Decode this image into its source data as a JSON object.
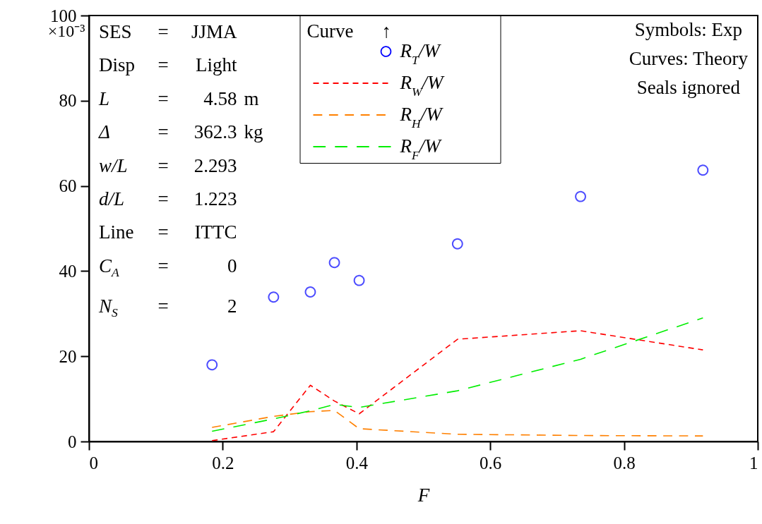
{
  "chart_data": {
    "type": "line",
    "xlabel": "F",
    "ylabel": "×10⁻³",
    "legend_title": "Curve",
    "annotations": [
      "↑",
      "SES = JJMA",
      "Disp = Light",
      "L = 4.58 m",
      "Δ = 362.3 kg",
      "w/L = 2.293",
      "d/L = 1.223",
      "Line = ITTC",
      "C$_{A}$ = 0",
      "N$_{S}$ = 2",
      "Symbols: Exp",
      "Curves: Theory",
      "Seals ignored"
    ],
    "x": [
      0.184,
      0.276,
      0.331,
      0.367,
      0.404,
      0.551,
      0.735,
      0.918
    ],
    "series": [
      {
        "name": "R$_{T}$/W",
        "type": "scatter",
        "marker": "circle",
        "color": "#0000ff",
        "values": [
          18.0,
          33.9,
          35.1,
          42.0,
          37.8,
          46.4,
          57.5,
          63.7
        ]
      },
      {
        "name": "R$_{W}$/W",
        "type": "line",
        "line_style": "dashed",
        "color": "#ff0000",
        "values": [
          0.2,
          2.3,
          13.2,
          9.5,
          6.5,
          24.0,
          26.0,
          21.5
        ]
      },
      {
        "name": "R$_{H}$/W",
        "type": "line",
        "line_style": "dashed",
        "color": "#ff8000",
        "values": [
          3.3,
          5.9,
          7.0,
          7.3,
          3.0,
          1.7,
          1.4,
          1.3
        ]
      },
      {
        "name": "R$_{F}$/W",
        "type": "line",
        "line_style": "dashed",
        "color": "#00ee00",
        "values": [
          2.4,
          5.3,
          7.2,
          8.7,
          8.0,
          11.9,
          19.3,
          29.0
        ]
      }
    ],
    "xlim": [
      0,
      1
    ],
    "xticks": [
      0,
      0.2,
      0.4,
      0.6,
      0.8,
      1
    ],
    "ylim": [
      0,
      100
    ],
    "yticks": [
      0,
      20,
      40,
      60,
      80,
      100
    ],
    "grid": false,
    "legend": "top"
  }
}
